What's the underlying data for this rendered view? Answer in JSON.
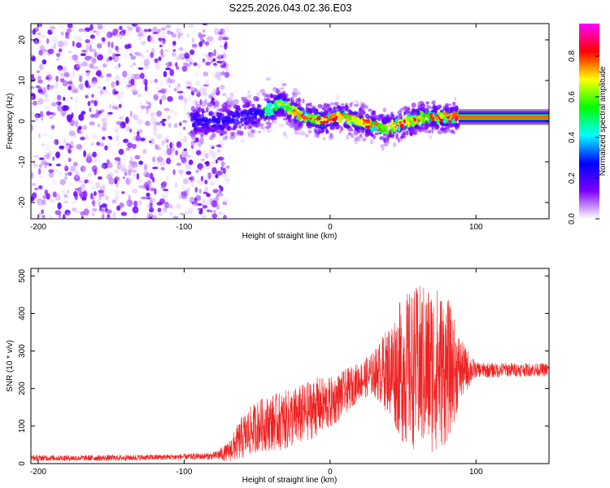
{
  "title": "S225.2026.043.02.36.E03",
  "chart_data": [
    {
      "type": "heatmap",
      "name": "spectrogram",
      "xlabel": "Height of straight line (km)",
      "ylabel": "Frequency (Hz)",
      "xlim": [
        -205,
        150
      ],
      "ylim": [
        -24,
        24
      ],
      "x_ticks": [
        -200,
        -100,
        0,
        100
      ],
      "y_ticks": [
        -20,
        -10,
        0,
        10,
        20
      ],
      "grid": false,
      "colorbar": {
        "label": "Normalized spectral amplitude",
        "range": [
          0.0,
          0.96
        ],
        "ticks": [
          0.0,
          0.2,
          0.4,
          0.6,
          0.8
        ],
        "tick_labels": [
          "0.0",
          "0.2",
          "0.4",
          "0.6",
          "0.8"
        ],
        "colors": [
          "#ffffff",
          "#7b00ff",
          "#0000ff",
          "#00ffff",
          "#00ff00",
          "#ffff00",
          "#ff0000",
          "#ff00ff"
        ]
      },
      "ridge": {
        "x": [
          -75,
          -60,
          -50,
          -40,
          -35,
          -30,
          -25,
          -20,
          -15,
          -10,
          -5,
          0,
          5,
          10,
          15,
          20,
          25,
          30,
          35,
          40,
          45,
          50,
          55,
          60,
          65,
          70,
          75,
          80,
          85,
          90,
          100,
          110,
          120,
          130,
          140,
          150
        ],
        "y": [
          0,
          1,
          2,
          3,
          4.5,
          3.5,
          2.5,
          1.5,
          1,
          0.5,
          0,
          0.5,
          1,
          1,
          0.5,
          0,
          -0.5,
          -1,
          -1.5,
          -1.5,
          -1,
          -0.5,
          0,
          0.5,
          1,
          1,
          1,
          1,
          1,
          1,
          1,
          1,
          1,
          1,
          1,
          1
        ]
      },
      "noise_region_x": [
        -205,
        -75
      ],
      "line_region_x": [
        88,
        150
      ]
    },
    {
      "type": "line",
      "name": "snr",
      "xlabel": "Height of straight line (km)",
      "ylabel": "SNR (10 * v/v)",
      "xlim": [
        -205,
        150
      ],
      "ylim": [
        0,
        520
      ],
      "x_ticks": [
        -200,
        -100,
        0,
        100
      ],
      "y_ticks": [
        0,
        100,
        200,
        300,
        400,
        500
      ],
      "grid": false,
      "line_color": "#ee2222",
      "envelope": {
        "x": [
          -205,
          -150,
          -100,
          -80,
          -70,
          -60,
          -50,
          -40,
          -30,
          -20,
          -10,
          0,
          10,
          20,
          30,
          40,
          50,
          60,
          70,
          80,
          90,
          100,
          110,
          120,
          130,
          140,
          150
        ],
        "mean": [
          15,
          15,
          18,
          20,
          30,
          70,
          100,
          110,
          115,
          130,
          150,
          160,
          190,
          220,
          240,
          250,
          250,
          255,
          255,
          250,
          250,
          250,
          248,
          250,
          250,
          250,
          250
        ],
        "spread": [
          8,
          8,
          8,
          10,
          25,
          60,
          70,
          75,
          80,
          80,
          80,
          70,
          60,
          50,
          60,
          120,
          200,
          220,
          230,
          200,
          80,
          20,
          20,
          20,
          18,
          18,
          18
        ]
      }
    }
  ]
}
